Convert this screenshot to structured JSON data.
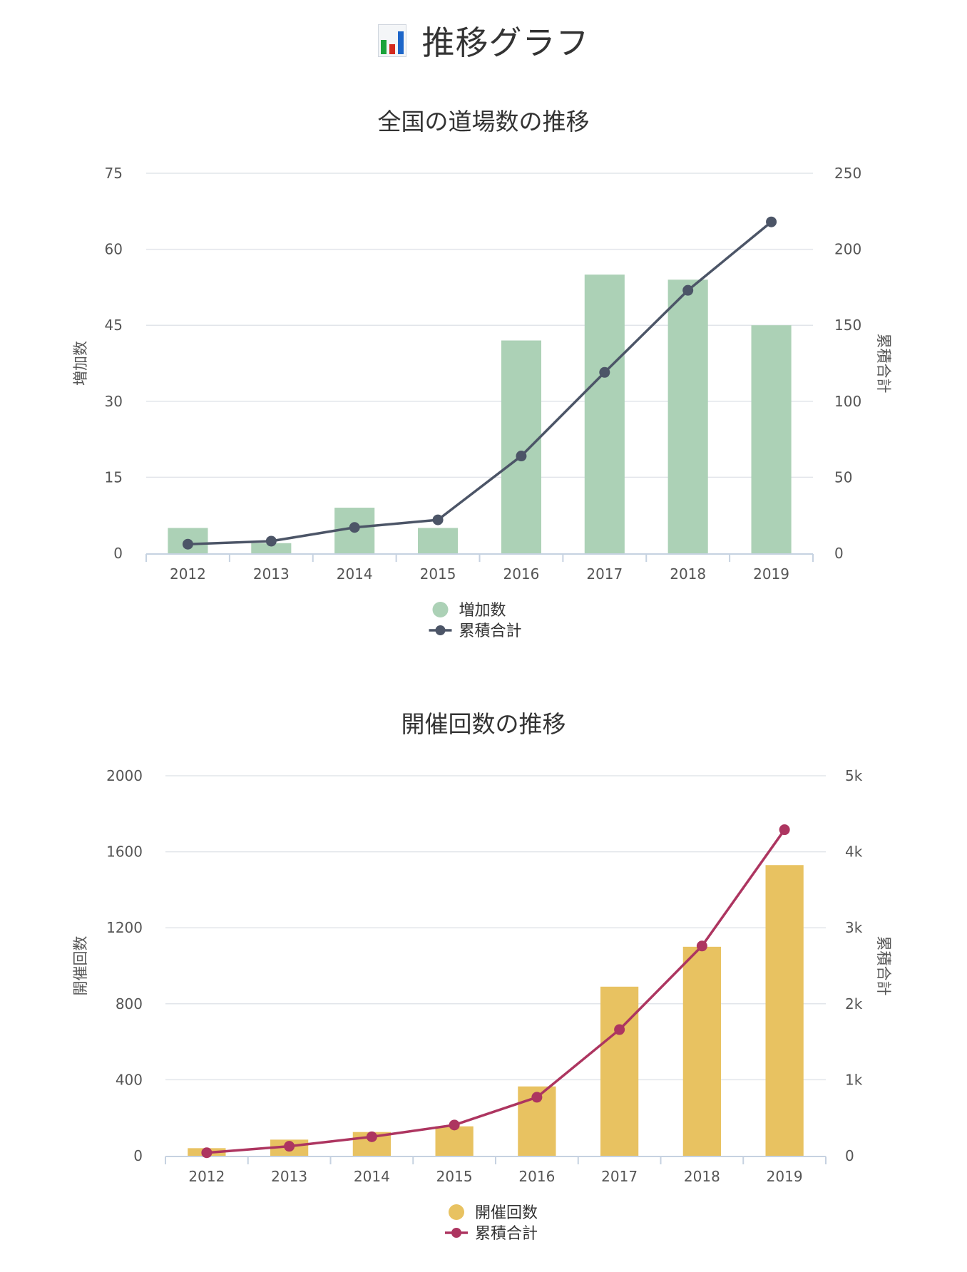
{
  "page": {
    "title": "推移グラフ",
    "icon": "bar-chart-icon"
  },
  "colors": {
    "bar1": "#acd1b6",
    "line1": "#4c5567",
    "bar2": "#e8c261",
    "line2": "#ad3560",
    "grid": "#e2e5ea",
    "axis": "#c6d2e1",
    "text": "#555555"
  },
  "chart_data": [
    {
      "type": "bar",
      "title": "全国の道場数の推移",
      "categories": [
        "2012",
        "2013",
        "2014",
        "2015",
        "2016",
        "2017",
        "2018",
        "2019"
      ],
      "series": [
        {
          "name": "増加数",
          "type": "bar",
          "axis": "left",
          "values": [
            5,
            2,
            9,
            5,
            42,
            55,
            54,
            45
          ]
        },
        {
          "name": "累積合計",
          "type": "line",
          "axis": "right",
          "values": [
            6,
            8,
            17,
            22,
            64,
            119,
            173,
            218
          ]
        }
      ],
      "ylabel": "増加数",
      "y2label": "累積合計",
      "ylim": [
        0,
        75
      ],
      "y2lim": [
        0,
        250
      ],
      "yticks": [
        "0",
        "15",
        "30",
        "45",
        "60",
        "75"
      ],
      "y2ticks": [
        "0",
        "50",
        "100",
        "150",
        "200",
        "250"
      ],
      "grid": true,
      "legend": "bottom-center"
    },
    {
      "type": "bar",
      "title": "開催回数の推移",
      "categories": [
        "2012",
        "2013",
        "2014",
        "2015",
        "2016",
        "2017",
        "2018",
        "2019"
      ],
      "series": [
        {
          "name": "開催回数",
          "type": "bar",
          "axis": "left",
          "values": [
            40,
            85,
            125,
            155,
            365,
            890,
            1100,
            1530
          ]
        },
        {
          "name": "累積合計",
          "type": "line",
          "axis": "right",
          "values": [
            40,
            125,
            250,
            405,
            770,
            1660,
            2760,
            4290
          ]
        }
      ],
      "ylabel": "開催回数",
      "y2label": "累積合計",
      "ylim": [
        0,
        2000
      ],
      "y2lim": [
        0,
        5000
      ],
      "yticks": [
        "0",
        "400",
        "800",
        "1200",
        "1600",
        "2000"
      ],
      "y2ticks": [
        "0",
        "1k",
        "2k",
        "3k",
        "4k",
        "5k"
      ],
      "grid": true,
      "legend": "bottom-center"
    }
  ]
}
